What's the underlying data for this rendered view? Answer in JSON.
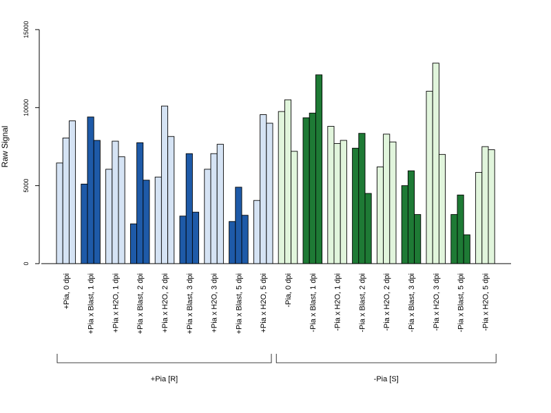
{
  "chart_data": {
    "type": "bar",
    "title": "",
    "xlabel": "",
    "ylabel": "Raw Signal",
    "ylim": [
      0,
      15000
    ],
    "yticks": [
      0,
      5000,
      10000,
      15000
    ],
    "grid": false,
    "legend": "none",
    "bars_per_category": 3,
    "categories": [
      "+Pia, 0 dpi",
      "+Pia x Blast, 1 dpi",
      "+Pia x H2O, 1 dpi",
      "+Pia x Blast, 2 dpi",
      "+Pia x H2O, 2 dpi",
      "+Pia x Blast, 3 dpi",
      "+Pia x H2O, 3 dpi",
      "+Pia x Blast, 5 dpi",
      "+Pia x H2O, 5 dpi",
      "-Pia, 0 dpi",
      "-Pia x Blast, 1 dpi",
      "-Pia x H2O, 1 dpi",
      "-Pia x Blast, 2 dpi",
      "-Pia x H2O, 2 dpi",
      "-Pia x Blast, 3 dpi",
      "-Pia x H2O, 3 dpi",
      "-Pia x Blast, 5 dpi",
      "-Pia x H2O, 5 dpi"
    ],
    "values": [
      [
        6450,
        8050,
        9150
      ],
      [
        5100,
        9400,
        7900
      ],
      [
        6050,
        7850,
        6850
      ],
      [
        2550,
        7750,
        5350
      ],
      [
        5550,
        10100,
        8150
      ],
      [
        3050,
        7050,
        3300
      ],
      [
        6050,
        7050,
        7650
      ],
      [
        2700,
        4900,
        3100
      ],
      [
        4050,
        9550,
        9000
      ],
      [
        9750,
        10500,
        7200
      ],
      [
        9350,
        9650,
        12100
      ],
      [
        8800,
        7700,
        7900
      ],
      [
        7400,
        8350,
        4500
      ],
      [
        6200,
        8300,
        7800
      ],
      [
        5000,
        5950,
        3150
      ],
      [
        11050,
        12850,
        7000
      ],
      [
        3150,
        4400,
        1850
      ],
      [
        5850,
        7500,
        7300
      ]
    ],
    "bar_colors": {
      "light_blue": "#d5e3f4",
      "dark_blue": "#1e5aa8",
      "light_green": "#e1f5dc",
      "dark_green": "#1e7a35",
      "border": "#000000"
    },
    "category_color_keys": [
      "light_blue",
      "dark_blue",
      "light_blue",
      "dark_blue",
      "light_blue",
      "dark_blue",
      "light_blue",
      "dark_blue",
      "light_blue",
      "light_green",
      "dark_green",
      "light_green",
      "dark_green",
      "light_green",
      "dark_green",
      "light_green",
      "dark_green",
      "light_green"
    ],
    "groups": [
      {
        "label": "+Pia [R]",
        "first_category": 0,
        "last_category": 8
      },
      {
        "label": "-Pia [S]",
        "first_category": 9,
        "last_category": 17
      }
    ]
  }
}
